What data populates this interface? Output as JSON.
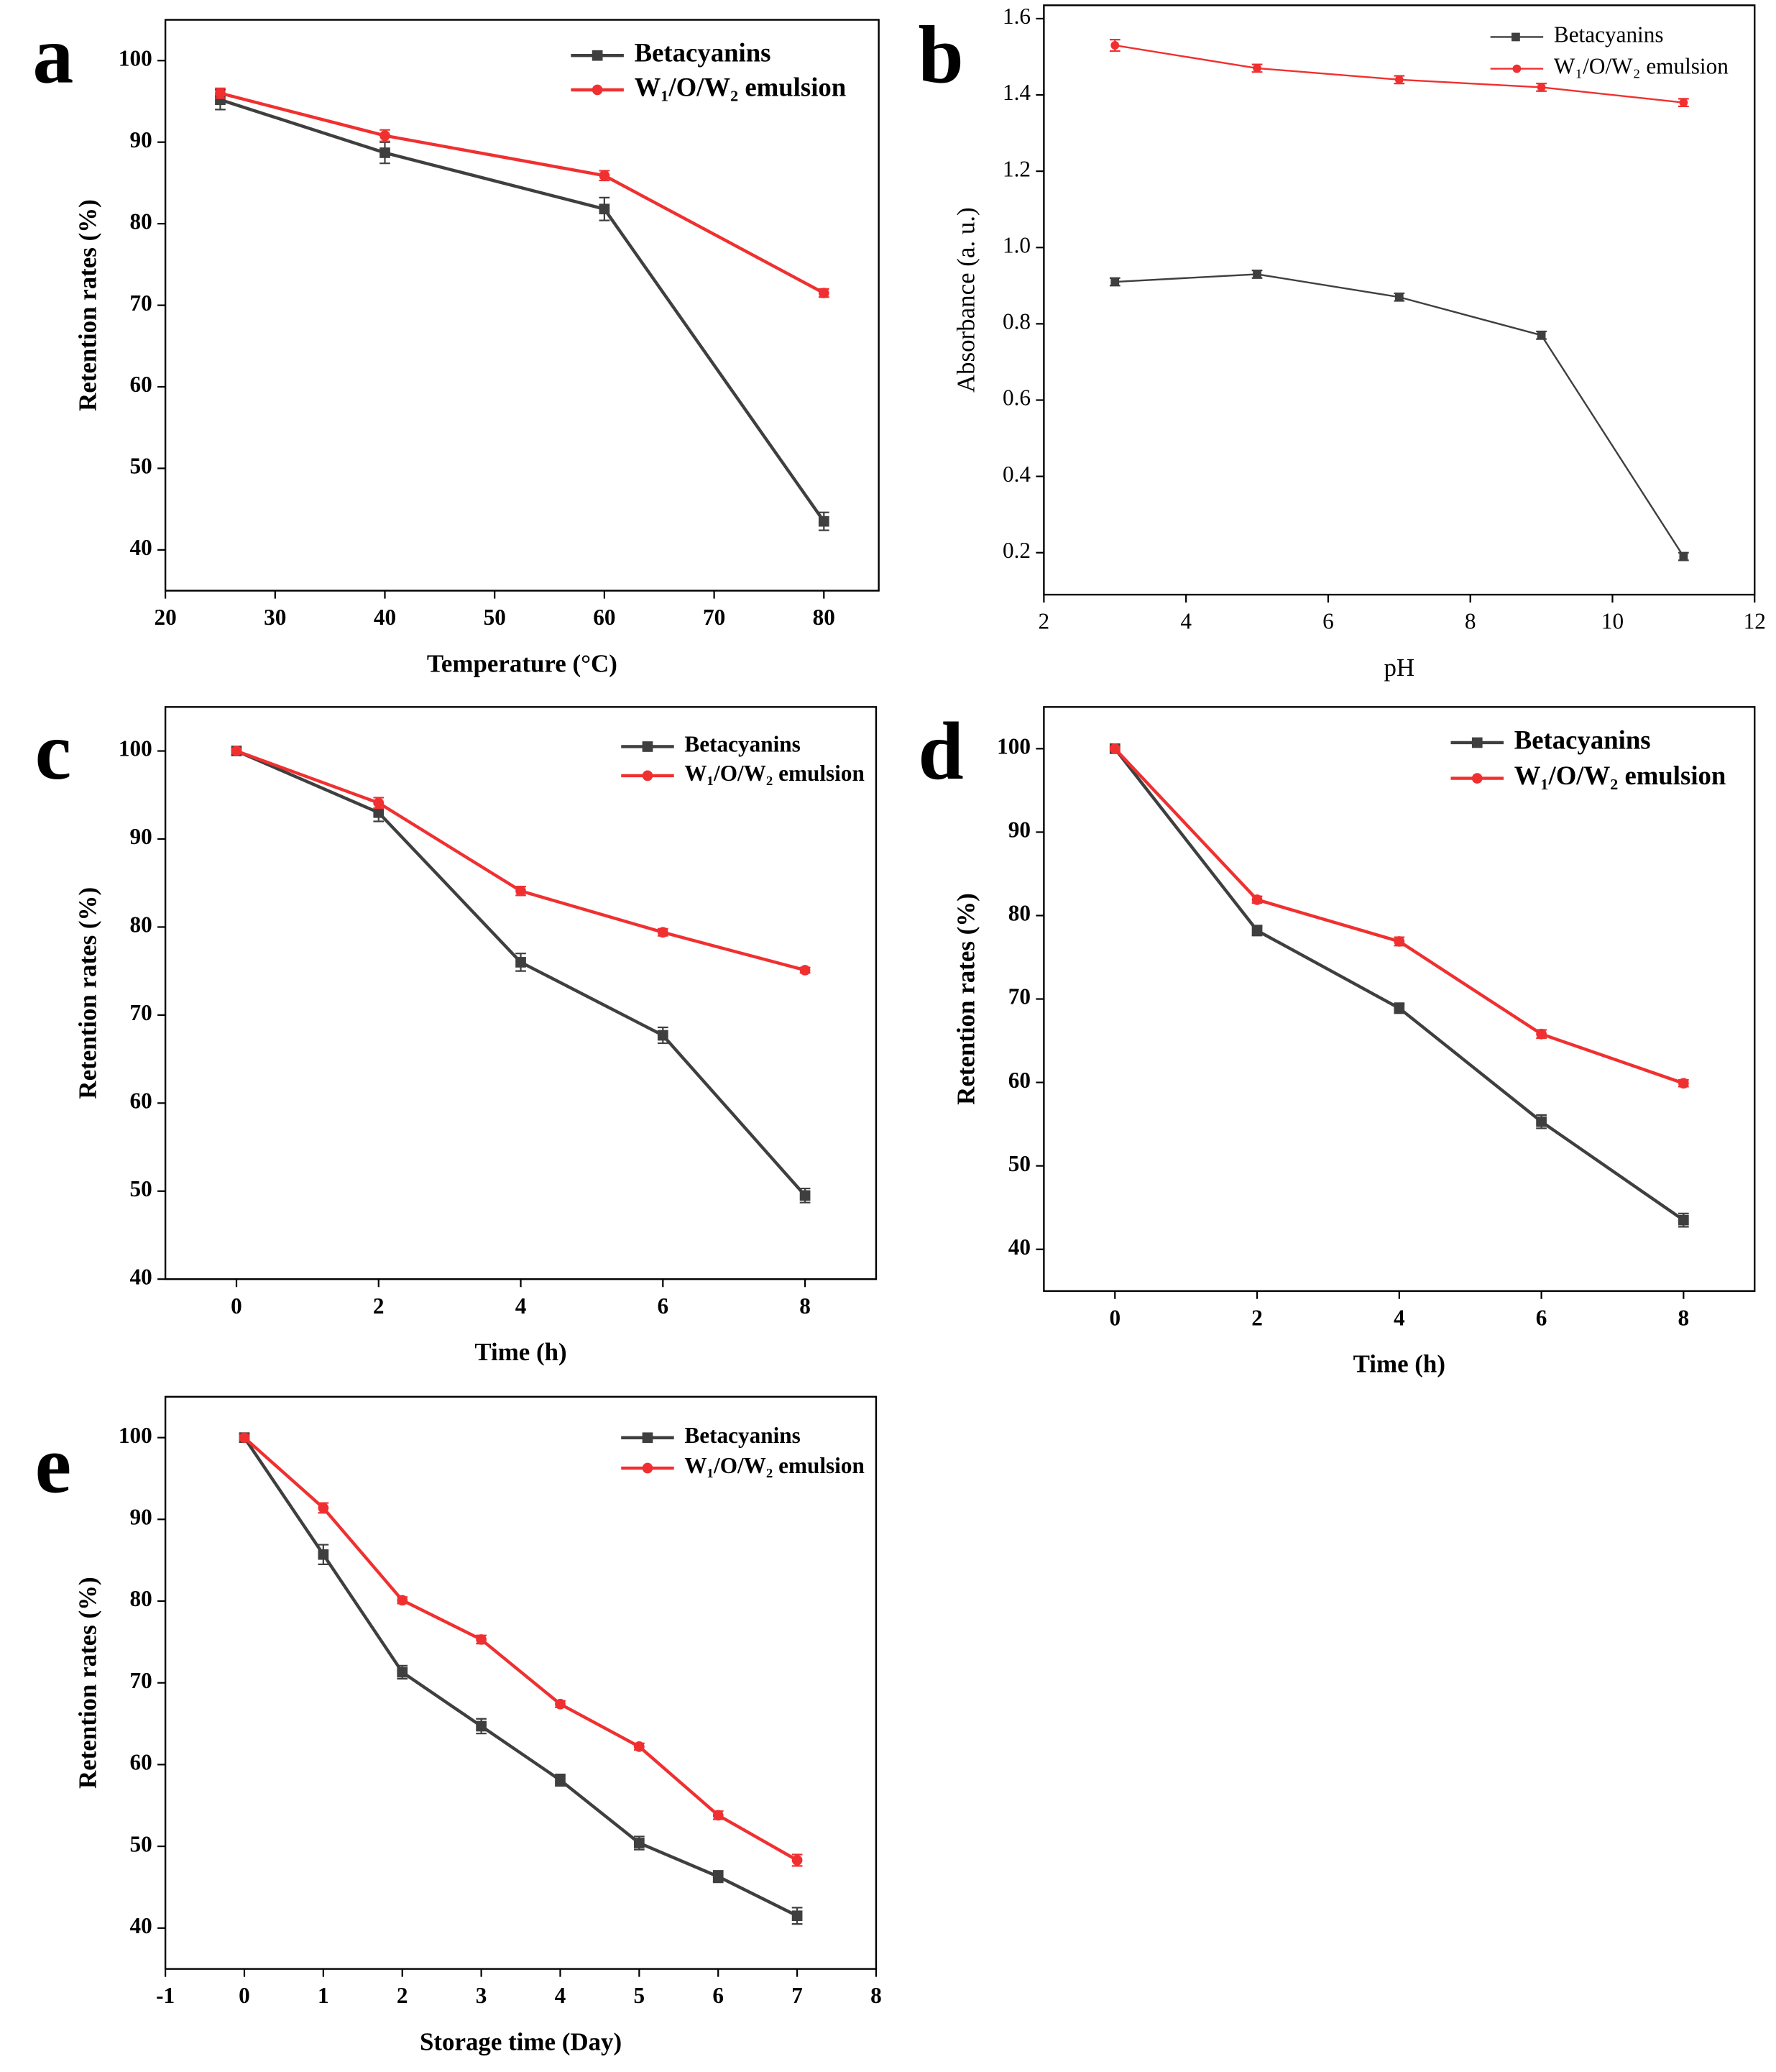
{
  "chart_data": [
    {
      "type": "line",
      "panel_label": "a",
      "x_label": "Temperature (°C)",
      "y_label": "Retention rates (%)",
      "x": [
        25,
        40,
        60,
        80
      ],
      "xlim": [
        20,
        85
      ],
      "xticks": [
        20,
        30,
        40,
        50,
        60,
        70,
        80
      ],
      "ylim": [
        35,
        105
      ],
      "yticks": [
        40,
        50,
        60,
        70,
        80,
        90,
        100
      ],
      "legend": "upper right",
      "series": [
        {
          "name": "Betacyanins",
          "color": "#3f3f3f",
          "marker": "square",
          "values": [
            95.2,
            88.7,
            81.8,
            43.5
          ],
          "errors": [
            1.2,
            1.3,
            1.4,
            1.1
          ]
        },
        {
          "name": "W₁/O/W₂ emulsion",
          "color": "#f03030",
          "marker": "circle",
          "values": [
            96,
            90.8,
            85.9,
            71.5
          ],
          "errors": [
            0.6,
            0.7,
            0.6,
            0.5
          ]
        }
      ]
    },
    {
      "type": "line",
      "panel_label": "b",
      "x_label": "pH",
      "y_label": "Absorbance (a. u.)",
      "x": [
        3,
        5,
        7,
        9,
        11
      ],
      "xlim": [
        2,
        12
      ],
      "xticks": [
        2,
        4,
        6,
        8,
        10,
        12
      ],
      "ylim": [
        0.09,
        1.635
      ],
      "yticks": [
        0.2,
        0.4,
        0.6,
        0.8,
        {
          "value": 1,
          "label": "1.0"
        },
        1.2,
        1.4,
        1.6
      ],
      "legend": "upper right",
      "series": [
        {
          "name": "Betacyanins",
          "color": "#3f3f3f",
          "marker": "square",
          "values": [
            0.91,
            0.93,
            0.87,
            0.77,
            0.19
          ],
          "errors": [
            0.01,
            0.01,
            0.01,
            0.01,
            0.01
          ]
        },
        {
          "name": "W₁/O/W₂ emulsion",
          "color": "#f03030",
          "marker": "circle",
          "values": [
            1.53,
            1.47,
            1.44,
            1.42,
            1.38
          ],
          "errors": [
            0.015,
            0.01,
            0.01,
            0.01,
            0.01
          ]
        }
      ]
    },
    {
      "type": "line",
      "panel_label": "c",
      "x_label": "Time (h)",
      "y_label": "Retention rates (%)",
      "x": [
        0,
        2,
        4,
        6,
        8
      ],
      "xlim": [
        -1,
        9
      ],
      "xticks": [
        0,
        2,
        4,
        6,
        8
      ],
      "ylim": [
        40,
        105
      ],
      "yticks": [
        40,
        50,
        60,
        70,
        80,
        90,
        100
      ],
      "legend": "upper right",
      "series": [
        {
          "name": "Betacyanins",
          "color": "#3f3f3f",
          "marker": "square",
          "values": [
            100,
            93,
            76,
            67.7,
            49.5
          ],
          "errors": [
            0.3,
            1.0,
            1.0,
            0.9,
            0.8
          ]
        },
        {
          "name": "W₁/O/W₂ emulsion",
          "color": "#f03030",
          "marker": "circle",
          "values": [
            100,
            94.1,
            84.1,
            79.4,
            75.1
          ],
          "errors": [
            0.3,
            0.6,
            0.5,
            0.4,
            0.3
          ]
        }
      ]
    },
    {
      "type": "line",
      "panel_label": "d",
      "x_label": "Time (h)",
      "y_label": "Retention rates (%)",
      "x": [
        0,
        2,
        4,
        6,
        8
      ],
      "xlim": [
        -1,
        9
      ],
      "xticks": [
        0,
        2,
        4,
        6,
        8
      ],
      "ylim": [
        35,
        105
      ],
      "yticks": [
        40,
        50,
        60,
        70,
        80,
        90,
        100
      ],
      "legend": "upper right",
      "series": [
        {
          "name": "Betacyanins",
          "color": "#3f3f3f",
          "marker": "square",
          "values": [
            100,
            78.2,
            68.9,
            55.3,
            43.5
          ],
          "errors": [
            0.2,
            0.6,
            0.6,
            0.8,
            0.8
          ]
        },
        {
          "name": "W₁/O/W₂ emulsion",
          "color": "#f03030",
          "marker": "circle",
          "values": [
            100,
            81.9,
            76.9,
            65.8,
            59.9
          ],
          "errors": [
            0.2,
            0.4,
            0.5,
            0.5,
            0.4
          ]
        }
      ]
    },
    {
      "type": "line",
      "panel_label": "e",
      "x_label": "Storage time (Day)",
      "y_label": "Retention rates (%)",
      "x": [
        0,
        1,
        2,
        3,
        4,
        5,
        6,
        7
      ],
      "xlim": [
        -1,
        8
      ],
      "xticks": [
        -1,
        0,
        1,
        2,
        3,
        4,
        5,
        6,
        7,
        8
      ],
      "ylim": [
        35,
        105
      ],
      "yticks": [
        40,
        50,
        60,
        70,
        80,
        90,
        100
      ],
      "legend": "upper right",
      "series": [
        {
          "name": "Betacyanins",
          "color": "#3f3f3f",
          "marker": "square",
          "values": [
            100,
            85.7,
            71.3,
            64.7,
            58.1,
            50.4,
            46.3,
            41.5
          ],
          "errors": [
            0.3,
            1.2,
            0.8,
            0.9,
            0.7,
            0.8,
            0.7,
            1.0
          ]
        },
        {
          "name": "W₁/O/W₂ emulsion",
          "color": "#f03030",
          "marker": "circle",
          "values": [
            100,
            91.4,
            80.1,
            75.3,
            67.4,
            62.2,
            53.8,
            48.3
          ],
          "errors": [
            0.3,
            0.6,
            0.4,
            0.5,
            0.4,
            0.4,
            0.5,
            0.7
          ]
        }
      ]
    }
  ]
}
